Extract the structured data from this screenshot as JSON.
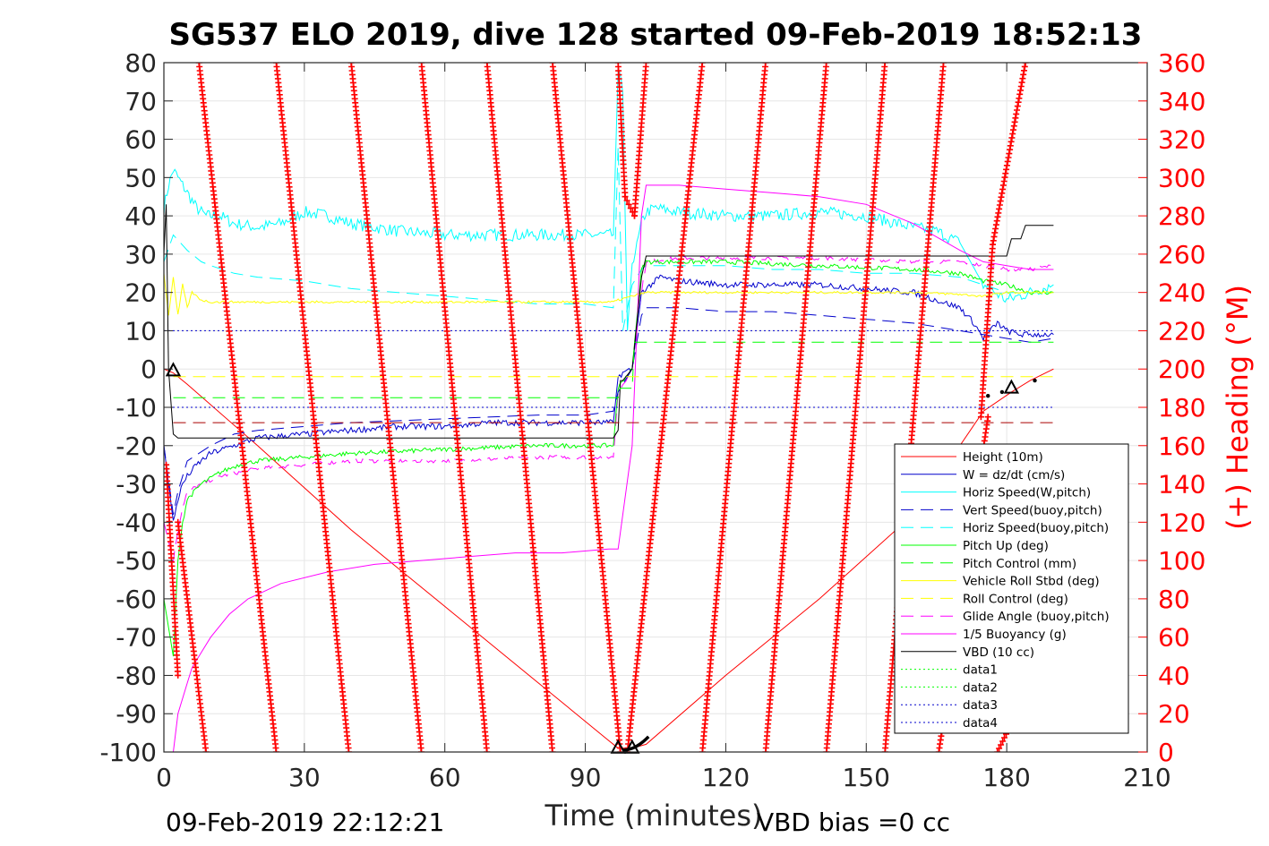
{
  "chart_data": {
    "type": "line",
    "title": "SG537 ELO 2019, dive 128 started 09-Feb-2019 18:52:13",
    "xlabel": "Time (minutes)",
    "ylabel_right": "(+) Heading (°M)",
    "xlim": [
      0,
      210
    ],
    "ylim": [
      -100,
      80
    ],
    "ylim_right": [
      0,
      360
    ],
    "xticks": [
      "0",
      "30",
      "60",
      "90",
      "120",
      "150",
      "180",
      "210"
    ],
    "yticks": [
      "80",
      "70",
      "60",
      "50",
      "40",
      "30",
      "20",
      "10",
      "0",
      "-10",
      "-20",
      "-30",
      "-40",
      "-50",
      "-60",
      "-70",
      "-80",
      "-90",
      "-100"
    ],
    "yticks_right": [
      "360",
      "340",
      "320",
      "300",
      "280",
      "260",
      "240",
      "220",
      "200",
      "180",
      "160",
      "140",
      "120",
      "100",
      "80",
      "60",
      "40",
      "20",
      "0"
    ],
    "footer_left": "09-Feb-2019 22:12:21",
    "footer_right": "VBD bias =0 cc",
    "colors": {
      "height": "#ff0000",
      "w": "#0000cc",
      "horiz": "#00ffff",
      "vert_buoy": "#0000cc",
      "horiz_buoy": "#00ffff",
      "pitch": "#00ff00",
      "pitch_ctrl": "#00ff00",
      "roll": "#ffff00",
      "roll_ctrl": "#ffff00",
      "glide": "#ff00ff",
      "buoy": "#ff00ff",
      "vbd": "#000000",
      "data1": "#00ff00",
      "data2": "#00ff00",
      "data3": "#0000cc",
      "data4": "#0000cc",
      "heading": "#ff0000",
      "red_dash": "#aa0000",
      "axis": "#262626"
    },
    "legend_position": "lower-right",
    "legend": [
      {
        "label": "Height (10m)",
        "color": "#ff0000",
        "style": "solid"
      },
      {
        "label": "W = dz/dt (cm/s)",
        "color": "#0000cc",
        "style": "solid"
      },
      {
        "label": "Horiz Speed(W,pitch)",
        "color": "#00ffff",
        "style": "solid"
      },
      {
        "label": "Vert Speed(buoy,pitch)",
        "color": "#0000cc",
        "style": "dash"
      },
      {
        "label": "Horiz Speed(buoy,pitch)",
        "color": "#00ffff",
        "style": "dash"
      },
      {
        "label": "Pitch Up (deg)",
        "color": "#00ff00",
        "style": "solid"
      },
      {
        "label": "Pitch Control (mm)",
        "color": "#00ff00",
        "style": "dash"
      },
      {
        "label": "Vehicle Roll Stbd (deg)",
        "color": "#ffff00",
        "style": "solid"
      },
      {
        "label": "Roll Control (deg)",
        "color": "#ffff00",
        "style": "dash"
      },
      {
        "label": "Glide Angle (buoy,pitch)",
        "color": "#ff00ff",
        "style": "dash"
      },
      {
        "label": "1/5 Buoyancy (g)",
        "color": "#ff00ff",
        "style": "solid"
      },
      {
        "label": "VBD (10 cc)",
        "color": "#000000",
        "style": "solid"
      },
      {
        "label": "data1",
        "color": "#00ff00",
        "style": "dot"
      },
      {
        "label": "data2",
        "color": "#00ff00",
        "style": "dot"
      },
      {
        "label": "data3",
        "color": "#0000cc",
        "style": "dot"
      },
      {
        "label": "data4",
        "color": "#0000cc",
        "style": "dot"
      }
    ],
    "series": [
      {
        "key": "height",
        "name": "Height (10m)",
        "color": "#ff0000",
        "dash": "",
        "width": 1,
        "x": [
          0,
          2,
          5,
          20,
          40,
          60,
          80,
          95,
          97,
          100,
          103,
          120,
          140,
          160,
          175,
          181,
          185,
          190
        ],
        "y": [
          0,
          -1,
          -4,
          -20,
          -42,
          -62,
          -82,
          -97,
          -99,
          -99,
          -98,
          -80,
          -60,
          -38,
          -11,
          -6,
          -3,
          0
        ]
      },
      {
        "key": "horiz",
        "name": "Horiz Speed(W,pitch)",
        "color": "#00ffff",
        "dash": "",
        "width": 1,
        "noise": 1.6,
        "x": [
          0,
          1,
          2,
          3,
          5,
          7,
          9,
          12,
          15,
          20,
          25,
          30,
          35,
          40,
          50,
          60,
          70,
          80,
          90,
          96,
          97,
          98,
          99,
          100,
          101,
          102,
          103,
          105,
          110,
          120,
          130,
          140,
          150,
          160,
          165,
          170,
          175,
          180,
          185,
          190
        ],
        "y": [
          42,
          48,
          52,
          50,
          46,
          42,
          40,
          40,
          38,
          37,
          38,
          41,
          40,
          38,
          36,
          35,
          35,
          35,
          35,
          35,
          78,
          72,
          10,
          28,
          32,
          38,
          41,
          42,
          41,
          40,
          40,
          41,
          40,
          37,
          36,
          33,
          22,
          18,
          20,
          22
        ]
      },
      {
        "key": "horiz_buoy",
        "name": "Horiz Speed(buoy,pitch)",
        "color": "#00ffff",
        "dash": "14,8",
        "width": 1,
        "x": [
          0,
          2,
          5,
          8,
          10,
          15,
          20,
          30,
          40,
          50,
          60,
          70,
          80,
          90,
          96,
          97,
          98,
          100,
          102,
          103,
          110,
          120,
          130,
          140,
          150,
          160,
          170,
          175,
          180,
          185,
          190
        ],
        "y": [
          28,
          35,
          31,
          28,
          27,
          25,
          24,
          23,
          21,
          20,
          19,
          18,
          17,
          17,
          16,
          58,
          10,
          22,
          26,
          27,
          27,
          27,
          26,
          26,
          25,
          25,
          24,
          22,
          20,
          20,
          20
        ]
      },
      {
        "key": "glide",
        "name": "Glide Angle (buoy,pitch)",
        "color": "#ff00ff",
        "dash": "14,8",
        "width": 1,
        "noise": 0.5,
        "x": [
          0,
          2,
          3,
          4,
          5,
          8,
          12,
          16,
          20,
          30,
          40,
          60,
          80,
          96,
          97,
          98,
          100,
          102,
          103,
          110,
          120,
          140,
          160,
          170,
          175,
          180,
          185,
          190
        ],
        "y": [
          -40,
          -50,
          -42,
          -36,
          -32,
          -30,
          -28,
          -27,
          -26,
          -25,
          -24,
          -24,
          -23,
          -23,
          -6,
          -4,
          0,
          20,
          28,
          29,
          29,
          29,
          28,
          28,
          27,
          26,
          26,
          27
        ]
      },
      {
        "key": "pitch",
        "name": "Pitch Up (deg)",
        "color": "#00ff00",
        "dash": "",
        "width": 1,
        "noise": 0.6,
        "x": [
          0,
          2,
          3,
          4,
          5,
          8,
          12,
          16,
          20,
          30,
          40,
          60,
          80,
          96,
          97,
          98,
          100,
          102,
          103,
          110,
          120,
          140,
          160,
          170,
          175,
          180,
          185,
          190
        ],
        "y": [
          -60,
          -75,
          -50,
          -40,
          -34,
          -30,
          -27,
          -25,
          -24,
          -23,
          -22,
          -21,
          -20,
          -20,
          -5,
          -3,
          0,
          26,
          28,
          28,
          28,
          27,
          26,
          25,
          23,
          22,
          20,
          20
        ]
      },
      {
        "key": "w",
        "name": "W = dz/dt (cm/s)",
        "color": "#0000cc",
        "dash": "",
        "width": 1,
        "noise": 0.8,
        "x": [
          0,
          2,
          3,
          4,
          5,
          7,
          10,
          15,
          20,
          30,
          40,
          50,
          60,
          70,
          80,
          90,
          96,
          97,
          98,
          100,
          102,
          104,
          106,
          110,
          120,
          130,
          140,
          150,
          160,
          165,
          170,
          173,
          175,
          178,
          180,
          183,
          186,
          190
        ],
        "y": [
          -20,
          -40,
          -34,
          -30,
          -28,
          -25,
          -22,
          -20,
          -18,
          -17,
          -16,
          -15,
          -15,
          -14,
          -14,
          -14,
          -14,
          -2,
          -1,
          0,
          20,
          22,
          24,
          23,
          22,
          22,
          22,
          21,
          20,
          18,
          16,
          12,
          8,
          12,
          10,
          9,
          9,
          9
        ]
      },
      {
        "key": "vert_buoy",
        "name": "Vert Speed(buoy,pitch)",
        "color": "#0000cc",
        "dash": "14,8",
        "width": 1,
        "x": [
          0,
          2,
          3,
          5,
          10,
          15,
          20,
          30,
          40,
          60,
          80,
          90,
          96,
          97,
          98,
          100,
          102,
          103,
          110,
          120,
          130,
          140,
          150,
          160,
          170,
          175,
          180,
          185,
          190
        ],
        "y": [
          -20,
          -38,
          -32,
          -24,
          -20,
          -17,
          -16,
          -15,
          -14,
          -13,
          -12,
          -12,
          -11,
          -6,
          -4,
          0,
          14,
          16,
          16,
          15,
          15,
          14,
          13,
          12,
          10,
          9,
          8,
          7,
          8
        ]
      },
      {
        "key": "roll",
        "name": "Vehicle Roll Stbd (deg)",
        "color": "#ffff00",
        "dash": "",
        "width": 1,
        "noise": 0.3,
        "x": [
          0,
          1,
          2,
          3,
          4,
          5,
          6,
          8,
          10,
          20,
          40,
          60,
          80,
          96,
          97,
          100,
          103,
          110,
          120,
          140,
          160,
          170,
          175,
          180,
          185,
          190
        ],
        "y": [
          25,
          14,
          24,
          14,
          22,
          16,
          20,
          18,
          17.5,
          17.5,
          17.5,
          17.5,
          17.5,
          17.5,
          18,
          19,
          20,
          20,
          20,
          20,
          20,
          19.5,
          19,
          20,
          20,
          20
        ]
      },
      {
        "key": "buoy",
        "name": "1/5 Buoyancy (g)",
        "color": "#ff00ff",
        "dash": "",
        "width": 1,
        "x": [
          2,
          3,
          4,
          5,
          6,
          8,
          10,
          14,
          18,
          25,
          35,
          45,
          55,
          65,
          75,
          85,
          95,
          97,
          100,
          102,
          103,
          110,
          120,
          130,
          140,
          150,
          160,
          170,
          175,
          180,
          185,
          190
        ],
        "y": [
          -100,
          -90,
          -86,
          -82,
          -78,
          -74,
          -70,
          -64,
          -60,
          -56,
          -53,
          -51,
          -50,
          -49,
          -48,
          -48,
          -47,
          -47,
          -20,
          40,
          48,
          48,
          47,
          46,
          45,
          43,
          38,
          31,
          28,
          27,
          26,
          26
        ]
      },
      {
        "key": "vbd",
        "name": "VBD (10 cc)",
        "color": "#000000",
        "dash": "",
        "width": 1,
        "x": [
          0,
          0.5,
          1,
          2,
          3,
          30,
          60,
          96,
          97,
          97.5,
          98,
          100,
          102,
          103,
          110,
          130,
          150,
          170,
          179,
          180,
          181,
          183,
          184,
          190
        ],
        "y": [
          30,
          43,
          0,
          -17,
          -18,
          -18,
          -18,
          -18,
          -16,
          -3,
          -3,
          0,
          24,
          29.5,
          29.5,
          29.5,
          29.5,
          29.5,
          29.5,
          29.5,
          34,
          34,
          37.5,
          37.5
        ]
      },
      {
        "key": "pitch_ctrl",
        "name": "Pitch Control (mm)",
        "color": "#00ff00",
        "dash": "14,8",
        "width": 1,
        "x": [
          2,
          97,
          97.5,
          100,
          100.5,
          102,
          103,
          190
        ],
        "y": [
          -7.5,
          -7.5,
          -5,
          -5,
          7,
          7,
          7,
          7
        ]
      },
      {
        "key": "roll_ctrl",
        "name": "Roll Control (deg)",
        "color": "#ffff00",
        "dash": "14,8",
        "width": 1,
        "x": [
          2,
          190
        ],
        "y": [
          -2,
          -2
        ]
      },
      {
        "key": "red_dash",
        "name": "",
        "color": "#aa0000",
        "dash": "14,8",
        "width": 1,
        "x": [
          2,
          190
        ],
        "y": [
          -14,
          -14
        ]
      },
      {
        "key": "data3",
        "name": "data3",
        "color": "#0000cc",
        "dash": "2,3",
        "width": 1,
        "x": [
          0,
          190
        ],
        "y": [
          10,
          10
        ]
      },
      {
        "key": "data4",
        "name": "data4",
        "color": "#0000cc",
        "dash": "2,3",
        "width": 1,
        "x": [
          0,
          190
        ],
        "y": [
          -10,
          -10
        ]
      }
    ],
    "heading_sweeps": [
      {
        "x": [
          0.5,
          3
        ],
        "h": [
          150,
          40
        ]
      },
      {
        "x": [
          3,
          9
        ],
        "h": [
          120,
          0
        ]
      },
      {
        "x": [
          7.5,
          24
        ],
        "h": [
          360,
          0
        ]
      },
      {
        "x": [
          24,
          39.5
        ],
        "h": [
          360,
          0
        ]
      },
      {
        "x": [
          40,
          55
        ],
        "h": [
          360,
          0
        ]
      },
      {
        "x": [
          55,
          69
        ],
        "h": [
          360,
          0
        ]
      },
      {
        "x": [
          69,
          83
        ],
        "h": [
          360,
          0
        ]
      },
      {
        "x": [
          83,
          97.5
        ],
        "h": [
          360,
          0
        ]
      },
      {
        "x": [
          97,
          98.5
        ],
        "h": [
          360,
          290
        ]
      },
      {
        "x": [
          98.5,
          100.5
        ],
        "h": [
          290,
          280
        ]
      },
      {
        "x": [
          100.5,
          103
        ],
        "h": [
          280,
          360
        ]
      },
      {
        "x": [
          99,
          115
        ],
        "h": [
          0,
          360
        ]
      },
      {
        "x": [
          115,
          128.5
        ],
        "h": [
          0,
          360
        ]
      },
      {
        "x": [
          128.5,
          141.5
        ],
        "h": [
          0,
          360
        ]
      },
      {
        "x": [
          141.5,
          154
        ],
        "h": [
          0,
          360
        ]
      },
      {
        "x": [
          154,
          166.5
        ],
        "h": [
          0,
          360
        ]
      },
      {
        "x": [
          165.5,
          176
        ],
        "h": [
          0,
          175
        ]
      },
      {
        "x": [
          174.5,
          177
        ],
        "h": [
          175,
          265
        ]
      },
      {
        "x": [
          177,
          184
        ],
        "h": [
          265,
          360
        ]
      },
      {
        "x": [
          178,
          184
        ],
        "h": [
          0,
          30
        ]
      }
    ],
    "markers": [
      {
        "x": 2,
        "y": -0.5
      },
      {
        "x": 97,
        "y": -99
      },
      {
        "x": 100,
        "y": -99
      },
      {
        "x": 181,
        "y": -5
      }
    ]
  }
}
